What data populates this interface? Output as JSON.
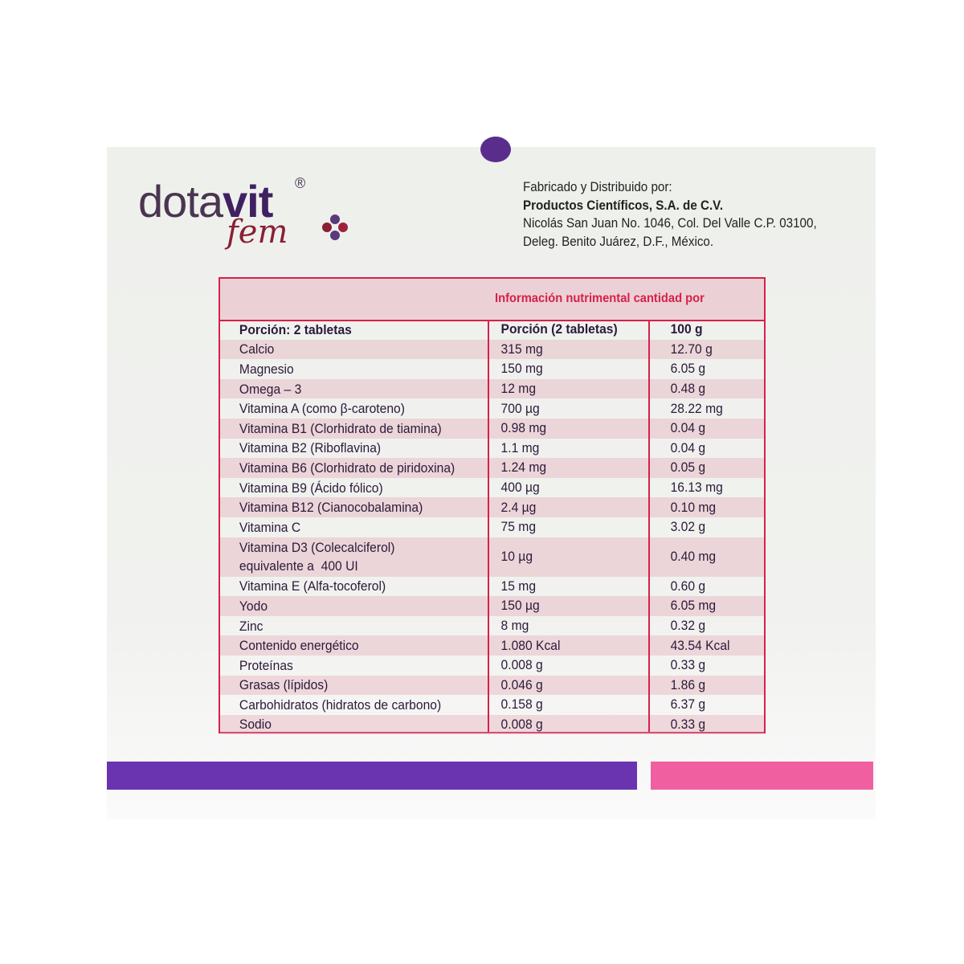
{
  "brand": {
    "logo_text": "dotavit® fem"
  },
  "manufacturer": {
    "line1": "Fabricado y Distribuido por:",
    "company": "Productos Científicos, S.A. de C.V.",
    "address1": "Nicolás San Juan No. 1046, Col. Del Valle C.P. 03100,",
    "address2": "Deleg. Benito Juárez, D.F., México."
  },
  "table": {
    "title": "Información nutrimental cantidad por",
    "header": [
      "Porción: 2 tabletas",
      "Porción (2 tabletas)",
      "100 g"
    ],
    "rows": [
      [
        "Calcio",
        "315 mg",
        "12.70 g"
      ],
      [
        "Magnesio",
        "150 mg",
        "6.05 g"
      ],
      [
        "Omega – 3",
        "12 mg",
        "0.48 g"
      ],
      [
        "Vitamina A (como β-caroteno)",
        "700 µg",
        "28.22 mg"
      ],
      [
        "Vitamina B1 (Clorhidrato de tiamina)",
        "0.98 mg",
        "0.04 g"
      ],
      [
        "Vitamina B2 (Riboflavina)",
        "1.1 mg",
        "0.04 g"
      ],
      [
        "Vitamina B6 (Clorhidrato de piridoxina)",
        "1.24 mg",
        "0.05 g"
      ],
      [
        "Vitamina B9 (Ácido fólico)",
        "400 µg",
        "16.13 mg"
      ],
      [
        "Vitamina B12 (Cianocobalamina)",
        "2.4 µg",
        "0.10 mg"
      ],
      [
        "Vitamina C",
        "75 mg",
        "3.02 g"
      ],
      [
        "Vitamina D3 (Colecalciferol)\nequivalente a  400 UI",
        "10 µg",
        "0.40 mg"
      ],
      [
        "Vitamina E (Alfa-tocoferol)",
        "15 mg",
        "0.60 g"
      ],
      [
        "Yodo",
        "150 µg",
        "6.05 mg"
      ],
      [
        "Zinc",
        "8 mg",
        "0.32 g"
      ],
      [
        "Contenido energético",
        "1.080 Kcal",
        "43.54 Kcal"
      ],
      [
        "Proteínas",
        "0.008 g",
        "0.33 g"
      ],
      [
        "Grasas (lípidos)",
        "0.046 g",
        "1.86 g"
      ],
      [
        "Carbohidratos (hidratos de carbono)",
        "0.158 g",
        "6.37 g"
      ],
      [
        "Sodio",
        "0.008 g",
        "0.33 g"
      ]
    ]
  },
  "colors": {
    "accent_red": "#d8204c",
    "purple": "#6a34b0",
    "pink": "#f060a0"
  }
}
